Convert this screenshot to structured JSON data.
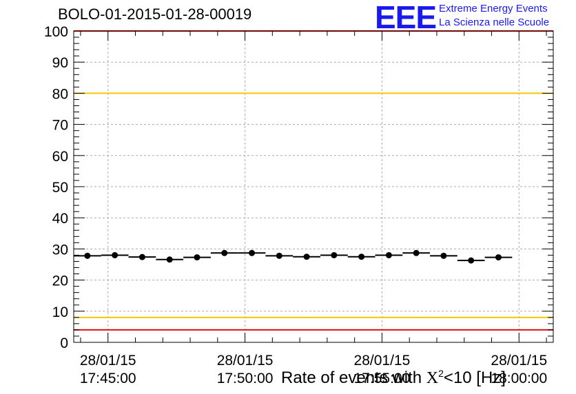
{
  "title": "BOLO-01-2015-01-28-00019",
  "logo": {
    "mark": "EEE",
    "line1": "Extreme Energy Events",
    "line2": "La Scienza nelle Scuole"
  },
  "xaxis_title": {
    "prefix": "Rate of events with ",
    "chi": "X",
    "sup": "2",
    "suffix": "<10 [Hz]"
  },
  "chart_data": {
    "type": "scatter",
    "title": "BOLO-01-2015-01-28-00019",
    "xlabel": "Rate of events with X^2<10 [Hz]",
    "ylabel": "",
    "ylim": [
      0,
      100
    ],
    "yticks": [
      0,
      10,
      20,
      30,
      40,
      50,
      60,
      70,
      80,
      90,
      100
    ],
    "xticks": [
      {
        "date": "28/01/15",
        "time": "17:45:00",
        "minutes": 0
      },
      {
        "date": "28/01/15",
        "time": "17:50:00",
        "minutes": 5
      },
      {
        "date": "28/01/15",
        "time": "17:55:00",
        "minutes": 10
      },
      {
        "date": "28/01/15",
        "time": "18:00:00",
        "minutes": 15
      }
    ],
    "xlim_minutes": [
      -1.25,
      16.25
    ],
    "bin_width_minutes": 1,
    "grid": true,
    "reference_lines": [
      {
        "y": 80,
        "color": "#f5c800"
      },
      {
        "y": 8,
        "color": "#f5c800"
      },
      {
        "y": 100,
        "color": "#e01010"
      },
      {
        "y": 4,
        "color": "#e01010"
      }
    ],
    "series": [
      {
        "values": [
          {
            "x": -0.75,
            "y": 27.8
          },
          {
            "x": 0.25,
            "y": 28.0
          },
          {
            "x": 1.25,
            "y": 27.4
          },
          {
            "x": 2.25,
            "y": 26.6
          },
          {
            "x": 3.25,
            "y": 27.3
          },
          {
            "x": 4.25,
            "y": 28.7
          },
          {
            "x": 5.25,
            "y": 28.7
          },
          {
            "x": 6.25,
            "y": 27.8
          },
          {
            "x": 7.25,
            "y": 27.5
          },
          {
            "x": 8.25,
            "y": 28.0
          },
          {
            "x": 9.25,
            "y": 27.5
          },
          {
            "x": 10.25,
            "y": 28.0
          },
          {
            "x": 11.25,
            "y": 28.7
          },
          {
            "x": 12.25,
            "y": 27.8
          },
          {
            "x": 13.25,
            "y": 26.3
          },
          {
            "x": 14.25,
            "y": 27.3
          }
        ]
      }
    ]
  }
}
